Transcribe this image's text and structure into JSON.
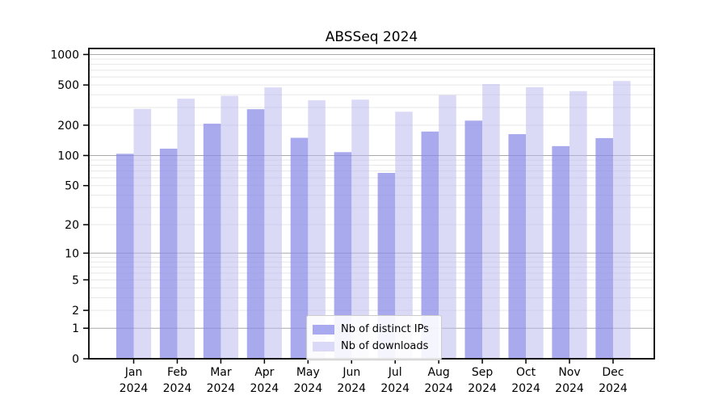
{
  "title": "ABSSeq 2024",
  "chart_data": {
    "type": "bar",
    "title": "ABSSeq 2024",
    "categories": [
      "Jan",
      "Feb",
      "Mar",
      "Apr",
      "May",
      "Jun",
      "Jul",
      "Aug",
      "Sep",
      "Oct",
      "Nov",
      "Dec"
    ],
    "year": "2024",
    "series": [
      {
        "name": "Nb of distinct IPs",
        "color": "#a9a9ef",
        "bar_fill": "#8888e8",
        "bar_opacity": 0.72,
        "values": [
          104,
          117,
          207,
          288,
          150,
          108,
          67,
          173,
          222,
          163,
          124,
          149
        ]
      },
      {
        "name": "Nb of downloads",
        "color": "#dadaf8",
        "bar_fill": "#b9b9f0",
        "bar_opacity": 0.53,
        "values": [
          290,
          366,
          391,
          473,
          353,
          358,
          272,
          397,
          511,
          476,
          435,
          547
        ]
      }
    ],
    "yscale": "log10(1+v)",
    "yticks": [
      1000,
      500,
      200,
      100,
      50,
      20,
      10,
      5,
      2,
      1,
      0
    ],
    "ylim": [
      0,
      1150
    ],
    "grid": "horizontal; major gridlines at powers of 10, minor at intermediate values",
    "major_grid_values": [
      1,
      10,
      100,
      1000
    ],
    "minor_grid_values": [
      2,
      3,
      4,
      5,
      6,
      7,
      8,
      9,
      20,
      30,
      40,
      50,
      60,
      70,
      80,
      90,
      200,
      300,
      400,
      500,
      600,
      700,
      800,
      900
    ],
    "legend_position": "bottom-center inside plot",
    "colors": {
      "major_grid": "#a8a8a8",
      "minor_grid": "#e7e7e7",
      "spine": "#000000",
      "text": "#000000"
    }
  },
  "legend": {
    "items": [
      {
        "label": "Nb of distinct IPs",
        "color": "#a9a9ef"
      },
      {
        "label": "Nb of downloads",
        "color": "#dadaf8"
      }
    ]
  }
}
